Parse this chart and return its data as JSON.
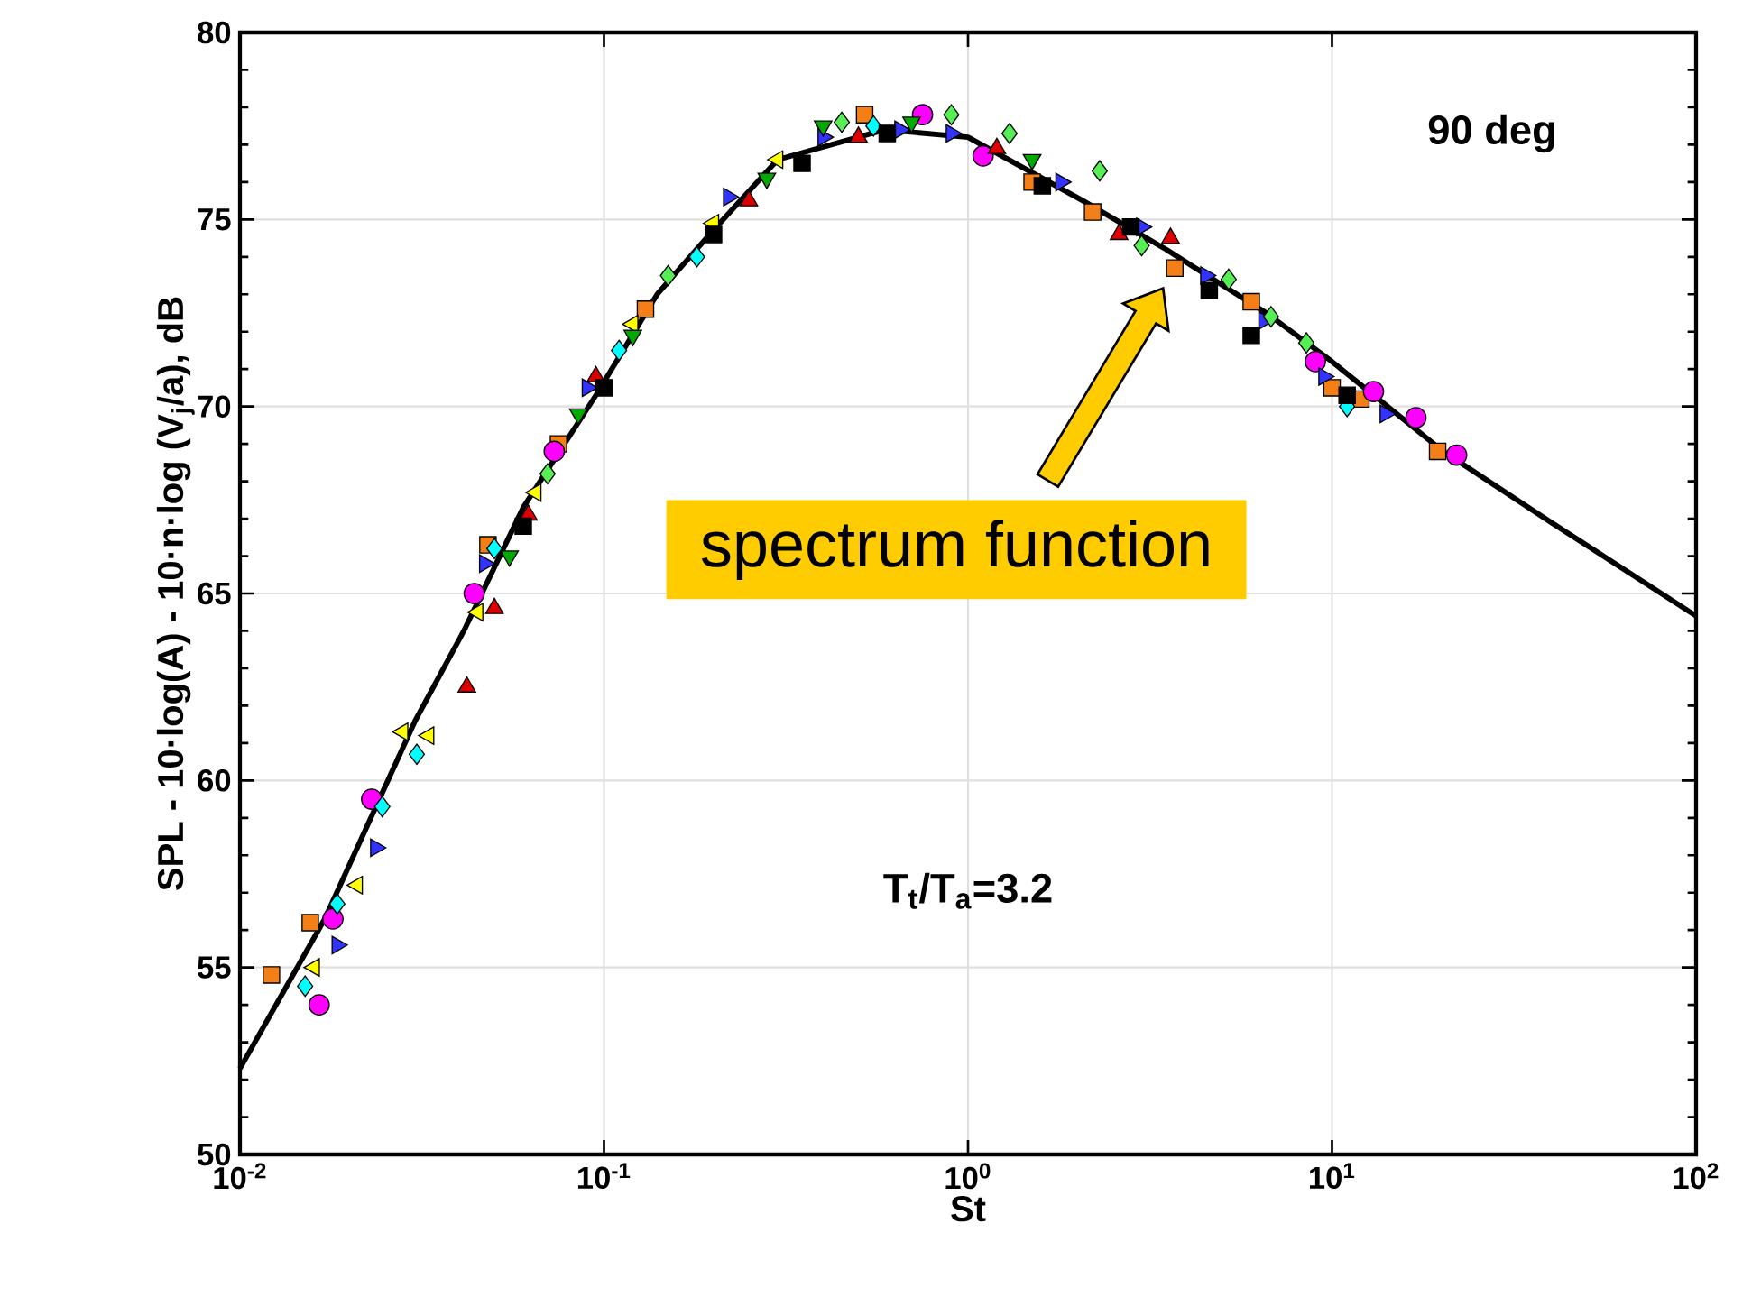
{
  "chart_data": {
    "type": "scatter",
    "xlabel": "St",
    "ylabel": "SPL - 10·log(A) - 10·n·log (V$_{j}$/a), dB",
    "log": "x",
    "grid": true,
    "xlim": [
      0.01,
      100
    ],
    "ylim": [
      50,
      80
    ],
    "xticks": [
      {
        "value": 0.01,
        "label": "10$^{-2}$"
      },
      {
        "value": 0.1,
        "label": "10$^{-1}$"
      },
      {
        "value": 1,
        "label": "10$^{0}$"
      },
      {
        "value": 10,
        "label": "10$^{1}$"
      },
      {
        "value": 100,
        "label": "10$^{2}$"
      }
    ],
    "yticks": [
      50,
      55,
      60,
      65,
      70,
      75,
      80
    ],
    "annotations": [
      "90 deg",
      "T$_{t}$/T$_{a}$=3.2",
      "spectrum function"
    ],
    "series": [
      {
        "type": "line",
        "color": "#000000",
        "line_style": "solid",
        "x": [
          0.01,
          0.0171,
          0.0303,
          0.0412,
          0.06,
          0.095,
          0.14,
          0.195,
          0.3,
          0.59,
          1.0,
          2.07,
          3.5,
          6.6,
          10,
          20.2,
          40,
          100
        ],
        "values": [
          52.3,
          56.3,
          61.6,
          64.0,
          67.3,
          70.3,
          73.0,
          74.6,
          76.6,
          77.4,
          77.2,
          75.5,
          74.2,
          72.5,
          71.2,
          68.8,
          66.9,
          64.4
        ]
      },
      {
        "marker": "square",
        "color": "#f57f17",
        "x": [
          0.0122,
          0.0156,
          0.048,
          0.075,
          0.13,
          0.52,
          1.5,
          2.2,
          3.7,
          6.0,
          10,
          12,
          19.5
        ],
        "values": [
          54.8,
          56.2,
          66.3,
          69.0,
          72.6,
          77.8,
          76.0,
          75.2,
          73.7,
          72.8,
          70.5,
          70.2,
          68.8
        ]
      },
      {
        "marker": "circle",
        "color": "#ff00ff",
        "x": [
          0.0165,
          0.018,
          0.023,
          0.044,
          0.073,
          0.75,
          1.1,
          9,
          13,
          17,
          22
        ],
        "values": [
          54.0,
          56.3,
          59.5,
          65.0,
          68.8,
          77.8,
          76.7,
          71.2,
          70.4,
          69.7,
          68.7
        ]
      },
      {
        "marker": "diamond",
        "color": "#00ffff",
        "x": [
          0.0151,
          0.0185,
          0.0246,
          0.0306,
          0.05,
          0.11,
          0.18,
          0.55,
          11
        ],
        "values": [
          54.5,
          56.7,
          59.3,
          60.7,
          66.2,
          71.5,
          74.0,
          77.5,
          70.0
        ]
      },
      {
        "marker": "triangle-left",
        "color": "#ffff00",
        "x": [
          0.016,
          0.021,
          0.028,
          0.033,
          0.045,
          0.065,
          0.12,
          0.2,
          0.3
        ],
        "values": [
          55.0,
          57.2,
          61.3,
          61.2,
          64.5,
          67.7,
          72.2,
          74.9,
          76.6
        ]
      },
      {
        "marker": "triangle-right",
        "color": "#3333ff",
        "x": [
          0.0185,
          0.0236,
          0.047,
          0.09,
          0.22,
          0.4,
          0.65,
          0.9,
          1.8,
          3.0,
          4.5,
          6.5,
          9.5,
          14
        ],
        "values": [
          55.6,
          58.2,
          65.8,
          70.5,
          75.6,
          77.2,
          77.4,
          77.3,
          76.0,
          74.8,
          73.5,
          72.3,
          70.8,
          69.8
        ]
      },
      {
        "marker": "diamond",
        "color": "#55ee55",
        "x": [
          0.07,
          0.15,
          0.45,
          0.9,
          1.3,
          2.3,
          3.0,
          5.2,
          6.8,
          8.5
        ],
        "values": [
          68.2,
          73.5,
          77.6,
          77.8,
          77.3,
          76.3,
          74.3,
          73.4,
          72.4,
          71.7
        ]
      },
      {
        "marker": "triangle",
        "color": "#dd0000",
        "x": [
          0.042,
          0.05,
          0.062,
          0.095,
          0.25,
          0.5,
          1.2,
          2.6,
          3.6
        ],
        "values": [
          62.5,
          64.6,
          67.1,
          70.8,
          75.5,
          77.2,
          76.9,
          74.6,
          74.5
        ]
      },
      {
        "marker": "square",
        "color": "#000000",
        "x": [
          0.06,
          0.1,
          0.2,
          0.35,
          0.6,
          1.6,
          2.8,
          4.6,
          6.0,
          11
        ],
        "values": [
          66.8,
          70.5,
          74.6,
          76.5,
          77.3,
          75.9,
          74.8,
          73.1,
          71.9,
          70.3
        ]
      },
      {
        "marker": "triangle-down",
        "color": "#00aa00",
        "x": [
          0.055,
          0.085,
          0.12,
          0.28,
          0.4,
          0.7,
          1.5
        ],
        "values": [
          66.0,
          69.8,
          71.9,
          76.1,
          77.5,
          77.6,
          76.6
        ]
      }
    ]
  }
}
